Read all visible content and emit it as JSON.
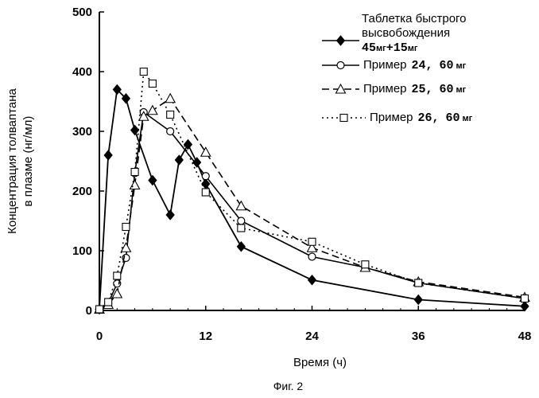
{
  "chart_data": {
    "type": "line",
    "title": "",
    "xlabel": "Время (ч)",
    "ylabel_line1": "Концентрация толваптана",
    "ylabel_line2": "в плазме (нг/мл)",
    "caption": "Фиг. 2",
    "xlim": [
      0,
      48
    ],
    "ylim": [
      0,
      500
    ],
    "xticks": [
      "0",
      "12",
      "24",
      "36",
      "48"
    ],
    "xtick_values": [
      0,
      12,
      24,
      36,
      48
    ],
    "yticks": [
      "0",
      "100",
      "200",
      "300",
      "400",
      "500"
    ],
    "ytick_values": [
      0,
      100,
      200,
      300,
      400,
      500
    ],
    "grid": false,
    "legend_position": "top-right",
    "series": [
      {
        "legend": {
          "line1": "Таблетка быстрого",
          "line2": "высвобождения",
          "dose_a": "45",
          "unit_a": "мг",
          "dose_b": "+15",
          "unit_b": "мг"
        },
        "marker": "diamond",
        "dash": "solid",
        "x": [
          0,
          1,
          2,
          3,
          4,
          6,
          8,
          9,
          10,
          11,
          12,
          16,
          24,
          36,
          48
        ],
        "y": [
          2,
          260,
          370,
          355,
          302,
          218,
          160,
          252,
          278,
          248,
          212,
          107,
          51,
          18,
          7
        ]
      },
      {
        "legend": {
          "name": "Пример",
          "num": "24,",
          "dose": "60",
          "unit": "мг"
        },
        "marker": "circle",
        "dash": "solid",
        "x": [
          0,
          1,
          2,
          3,
          4,
          5,
          8,
          12,
          16,
          24,
          30,
          36,
          48
        ],
        "y": [
          2,
          12,
          45,
          88,
          230,
          332,
          300,
          225,
          150,
          90,
          72,
          46,
          20
        ]
      },
      {
        "legend": {
          "name": "Пример",
          "num": "25,",
          "dose": "60",
          "unit": "мг"
        },
        "marker": "triangle",
        "dash": "dashed",
        "x": [
          0,
          1,
          2,
          3,
          4,
          5,
          6,
          8,
          12,
          16,
          24,
          30,
          36,
          48
        ],
        "y": [
          2,
          10,
          28,
          105,
          210,
          325,
          335,
          355,
          265,
          175,
          105,
          72,
          48,
          22
        ]
      },
      {
        "legend": {
          "name": "Пример",
          "num": "26,",
          "dose": "60",
          "unit": "мг"
        },
        "marker": "square",
        "dash": "dotted",
        "x": [
          0,
          1,
          2,
          3,
          4,
          5,
          6,
          8,
          12,
          16,
          24,
          30,
          36,
          48
        ],
        "y": [
          2,
          14,
          58,
          140,
          232,
          400,
          380,
          328,
          198,
          138,
          115,
          77,
          46,
          20
        ]
      }
    ]
  }
}
